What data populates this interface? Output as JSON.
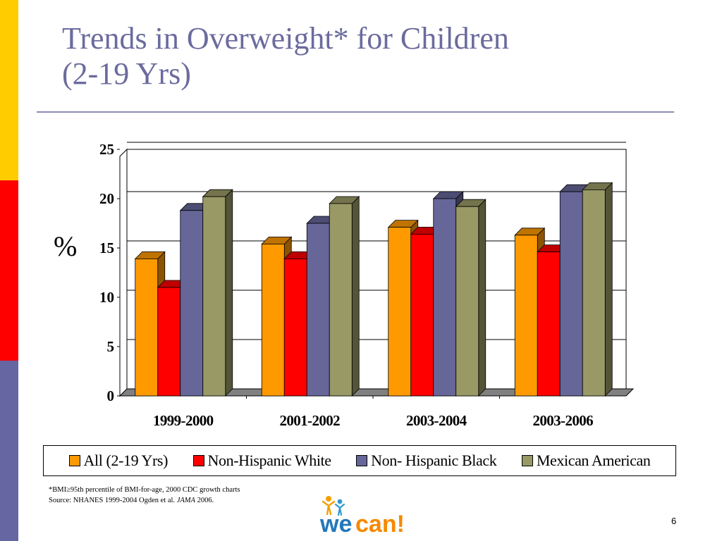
{
  "slide": {
    "title_line1": "Trends in Overweight* for Children",
    "title_line2": "(2-19 Yrs)",
    "y_symbol": "%",
    "footnote_line1_prefix": "*BMI",
    "footnote_line1_symbol": "≥",
    "footnote_line1_rest": "95th percentile of BMI-for-age, 2000 CDC growth charts",
    "source_prefix": "Source: NHANES 1999-2004 Ogden et al. ",
    "source_journal": "JAMA",
    "source_suffix": " 2006.",
    "page_number": "6",
    "logo_text_we": "we",
    "logo_text_can": "can!",
    "colors": {
      "strip_yellow": "#FFCC00",
      "strip_red": "#FF0000",
      "strip_purple": "#6666A3",
      "title": "#6B6B9E"
    }
  },
  "chart_data": {
    "type": "bar",
    "style": "3d-clustered",
    "categories": [
      "1999-2000",
      "2001-2002",
      "2003-2004",
      "2003-2006"
    ],
    "series": [
      {
        "name": "All (2-19 Yrs)",
        "color": "#FF9900",
        "values": [
          13.9,
          15.4,
          17.1,
          16.3
        ]
      },
      {
        "name": "Non-Hispanic White",
        "color": "#FF0000",
        "values": [
          11.0,
          13.9,
          16.4,
          14.6
        ]
      },
      {
        "name": "Non- Hispanic Black",
        "color": "#666699",
        "values": [
          18.8,
          17.5,
          20.0,
          20.7
        ]
      },
      {
        "name": "Mexican American",
        "color": "#999966",
        "values": [
          20.2,
          19.5,
          19.2,
          20.9
        ]
      }
    ],
    "ylim": [
      0,
      25
    ],
    "yticks": [
      0,
      5,
      10,
      15,
      20,
      25
    ],
    "grid": true,
    "legend_position": "bottom"
  }
}
